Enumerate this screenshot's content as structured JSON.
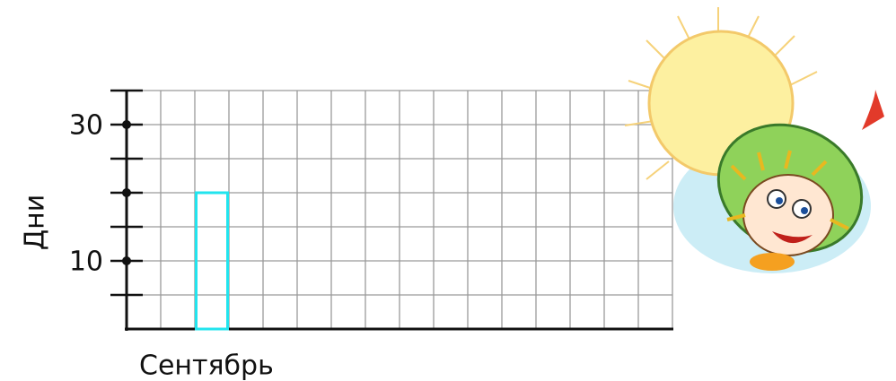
{
  "chart_data": {
    "type": "bar",
    "ylabel": "Дни",
    "categories": [
      "Сентябрь"
    ],
    "values": [
      20
    ],
    "color": "#22e4ee",
    "ylim": [
      0,
      35
    ],
    "yticks": [
      10,
      30
    ],
    "minor_yticks": [
      5,
      15,
      20,
      25,
      35
    ],
    "grid": true
  }
}
